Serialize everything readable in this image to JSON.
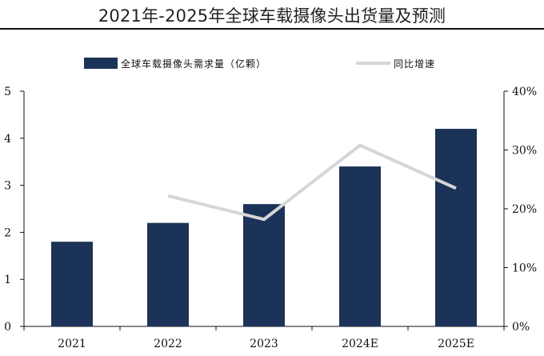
{
  "chart_data": {
    "type": "bar",
    "title": "2021年-2025年全球车载摄像头出货量及预测",
    "categories": [
      "2021",
      "2022",
      "2023",
      "2024E",
      "2025E"
    ],
    "series": [
      {
        "name": "全球车载摄像头需求量（亿颗）",
        "kind": "bar",
        "axis": "left",
        "color": "#1b3358",
        "values": [
          1.8,
          2.2,
          2.6,
          3.4,
          4.2
        ]
      },
      {
        "name": "同比增速",
        "kind": "line",
        "axis": "right",
        "color": "#d6d6d6",
        "values": [
          null,
          22.2,
          18.2,
          30.8,
          23.5
        ]
      }
    ],
    "ylim_left": [
      0,
      5
    ],
    "yticks_left": [
      "0",
      "1",
      "2",
      "3",
      "4",
      "5"
    ],
    "ylim_right": [
      0,
      40
    ],
    "yticks_right": [
      "0%",
      "10%",
      "20%",
      "30%",
      "40%"
    ],
    "xlabel": "",
    "ylabel": "",
    "legend_position": "top"
  }
}
